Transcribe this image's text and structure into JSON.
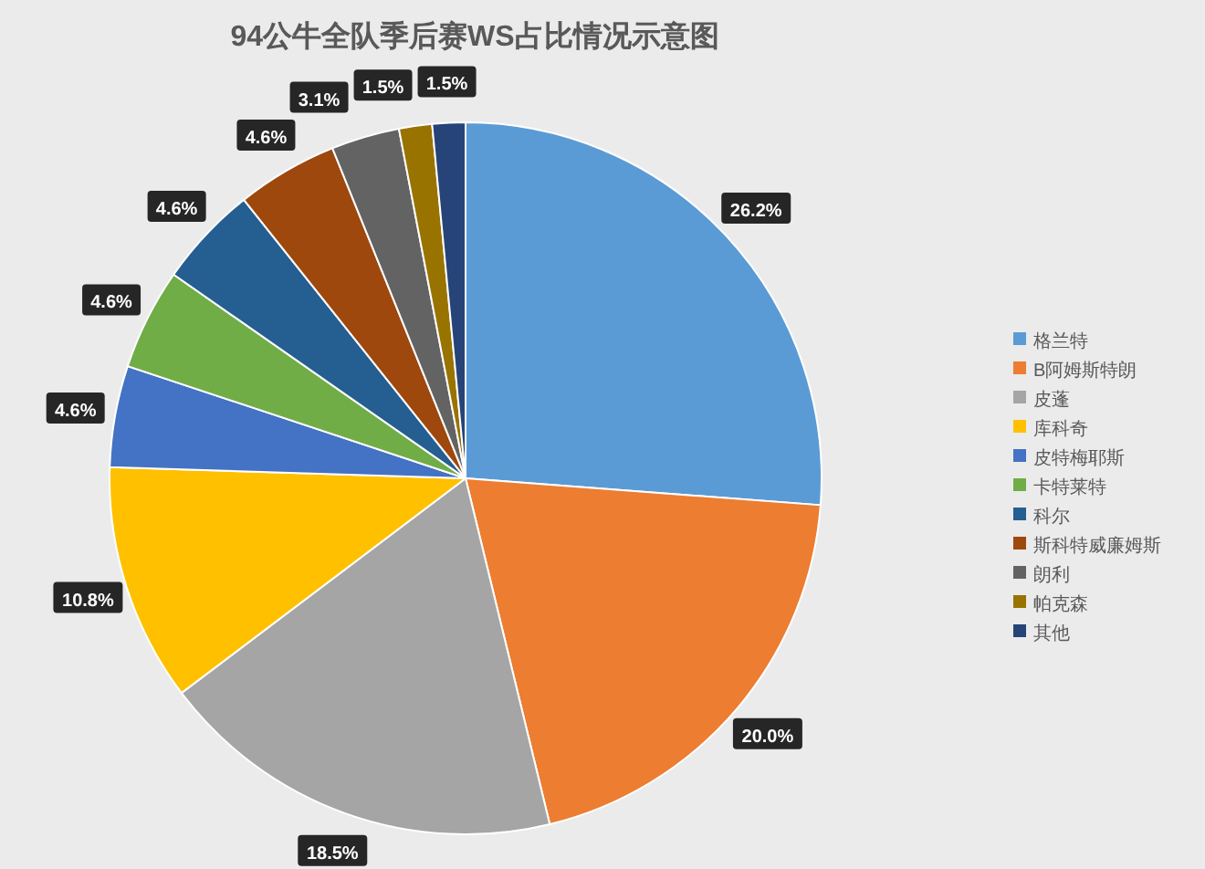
{
  "chart_data": {
    "type": "pie",
    "title": "94公牛全队季后赛WS占比情况示意图",
    "categories": [
      "格兰特",
      "B阿姆斯特朗",
      "皮蓬",
      "库科奇",
      "皮特梅耶斯",
      "卡特莱特",
      "科尔",
      "斯科特威廉姆斯",
      "朗利",
      "帕克森",
      "其他"
    ],
    "values": [
      26.2,
      20.0,
      18.5,
      10.8,
      4.6,
      4.6,
      4.6,
      4.6,
      3.1,
      1.5,
      1.5
    ],
    "value_labels": [
      "26.2%",
      "20.0%",
      "18.5%",
      "10.8%",
      "4.6%",
      "4.6%",
      "4.6%",
      "4.6%",
      "3.1%",
      "1.5%",
      "1.5%"
    ],
    "colors": [
      "#5b9bd5",
      "#ed7d31",
      "#a5a5a5",
      "#ffc000",
      "#4472c4",
      "#70ad47",
      "#255e91",
      "#9e480e",
      "#636363",
      "#997300",
      "#264478"
    ],
    "legend": "right"
  }
}
